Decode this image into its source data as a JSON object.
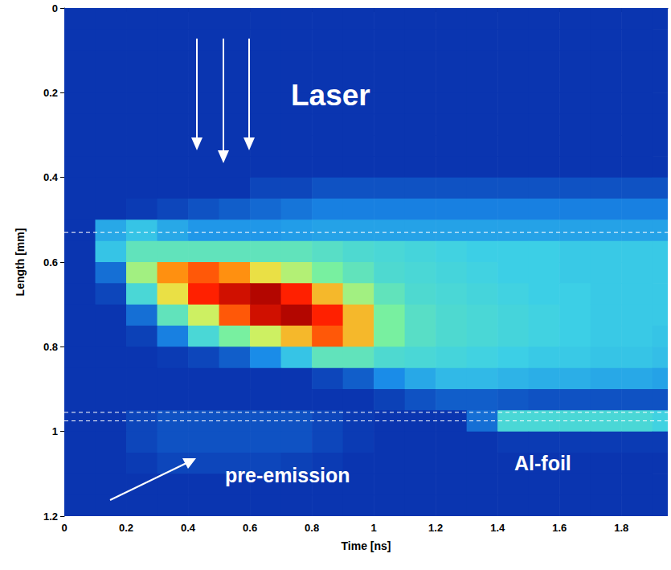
{
  "chart_data": {
    "type": "heatmap",
    "x_label": "Time [ns]",
    "y_label": "Length [mm]",
    "xlim": [
      0,
      1.95
    ],
    "ylim": [
      0,
      1.2
    ],
    "xticks": [
      0,
      0.2,
      0.4,
      0.6,
      0.8,
      1,
      1.2,
      1.4,
      1.6,
      1.8
    ],
    "yticks": [
      0,
      0.2,
      0.4,
      0.6,
      0.8,
      1,
      1.2
    ],
    "grid": false,
    "x_bins": [
      0,
      0.1,
      0.2,
      0.3,
      0.4,
      0.5,
      0.6,
      0.7,
      0.8,
      0.9,
      1,
      1.1,
      1.2,
      1.3,
      1.4,
      1.5,
      1.6,
      1.7,
      1.8,
      1.9,
      2
    ],
    "y_bins": [
      0,
      0.05,
      0.1,
      0.15,
      0.2,
      0.25,
      0.3,
      0.35,
      0.4,
      0.45,
      0.5,
      0.55,
      0.6,
      0.65,
      0.7,
      0.75,
      0.8,
      0.85,
      0.9,
      0.95,
      1,
      1.05,
      1.1,
      1.15,
      1.2
    ],
    "color_range": [
      0,
      10
    ],
    "cells": [
      [
        1.5,
        1.5,
        1.5,
        1.5,
        1.5,
        1.5,
        1.5,
        1.5,
        1.5,
        1.5,
        1.5,
        1.5,
        1.5,
        1.5,
        1.5,
        1.5,
        1.5,
        1.5,
        1.5,
        1.5
      ],
      [
        1.5,
        1.5,
        1.5,
        1.5,
        1.5,
        1.5,
        1.5,
        1.5,
        1.5,
        1.5,
        1.5,
        1.5,
        1.5,
        1.5,
        1.5,
        1.5,
        1.5,
        1.5,
        1.5,
        1.5
      ],
      [
        1.5,
        1.5,
        1.5,
        1.5,
        1.5,
        1.5,
        1.5,
        1.5,
        1.5,
        1.5,
        1.5,
        1.5,
        1.5,
        1.5,
        1.5,
        1.5,
        1.5,
        1.5,
        1.5,
        1.5
      ],
      [
        1.5,
        1.5,
        1.5,
        1.5,
        1.5,
        1.5,
        1.5,
        1.5,
        1.5,
        1.5,
        1.5,
        1.5,
        1.5,
        1.5,
        1.5,
        1.5,
        1.5,
        1.5,
        1.5,
        1.5
      ],
      [
        1.5,
        1.5,
        1.5,
        1.5,
        1.5,
        1.5,
        1.5,
        1.5,
        1.5,
        1.5,
        1.5,
        1.5,
        1.5,
        1.5,
        1.5,
        1.5,
        1.5,
        1.5,
        1.5,
        1.5
      ],
      [
        1.5,
        1.5,
        1.5,
        1.5,
        1.5,
        1.5,
        1.5,
        1.5,
        1.5,
        1.5,
        1.5,
        1.5,
        1.5,
        1.5,
        1.5,
        1.5,
        1.5,
        1.5,
        1.5,
        1.5
      ],
      [
        1.5,
        1.5,
        1.5,
        1.5,
        1.5,
        1.5,
        1.5,
        1.5,
        1.5,
        1.5,
        1.5,
        1.5,
        1.5,
        1.5,
        1.5,
        1.5,
        1.5,
        1.5,
        1.5,
        1.5
      ],
      [
        1.5,
        1.5,
        1.5,
        1.5,
        1.5,
        1.5,
        1.5,
        1.5,
        1.5,
        1.5,
        1.5,
        1.5,
        1.5,
        1.5,
        1.5,
        1.5,
        1.5,
        1.5,
        1.5,
        1.5
      ],
      [
        1.5,
        1.5,
        1.5,
        1.5,
        1.5,
        1.5,
        1.8,
        1.8,
        2,
        2,
        2,
        2,
        2,
        2,
        2,
        2,
        2,
        2,
        2,
        2
      ],
      [
        1.5,
        1.5,
        1.6,
        1.8,
        2,
        2.2,
        2.4,
        2.6,
        2.8,
        2.8,
        2.8,
        2.8,
        2.8,
        2.8,
        2.8,
        2.8,
        2.8,
        2.8,
        2.8,
        2.8
      ],
      [
        1.5,
        3.5,
        4,
        3.5,
        3.2,
        3.2,
        3.2,
        3.3,
        3.4,
        3.4,
        3.4,
        3.4,
        3.4,
        3.4,
        3.4,
        3.4,
        3.4,
        3.4,
        3.4,
        3.4
      ],
      [
        1.5,
        4,
        5,
        5,
        5,
        5,
        5,
        5,
        4.8,
        4.6,
        4.5,
        4.4,
        4.3,
        4.2,
        4.2,
        4.2,
        4.1,
        4.1,
        4.1,
        4.1
      ],
      [
        1.5,
        2.5,
        6,
        8,
        8.5,
        8,
        7,
        6.2,
        5.5,
        5,
        4.6,
        4.5,
        4.4,
        4.3,
        4.2,
        4.2,
        4.1,
        4.1,
        4.1,
        4.1
      ],
      [
        1.5,
        1.8,
        4.5,
        7,
        9,
        9.5,
        9.8,
        9,
        7.5,
        6,
        5,
        4.6,
        4.5,
        4.4,
        4.3,
        4.2,
        4.2,
        4.1,
        4.1,
        4.1
      ],
      [
        1.5,
        1.5,
        2.5,
        5,
        6.5,
        8.5,
        9.5,
        9.8,
        9,
        7.5,
        5.5,
        4.8,
        4.6,
        4.5,
        4.4,
        4.3,
        4.2,
        4.1,
        4.1,
        4.1
      ],
      [
        1.5,
        1.5,
        1.7,
        2.8,
        4.5,
        5.5,
        6.5,
        7.5,
        8.5,
        7.5,
        5.5,
        4.8,
        4.6,
        4.5,
        4.4,
        4.3,
        4.2,
        4.1,
        4.1,
        4
      ],
      [
        1.5,
        1.5,
        1.5,
        1.6,
        1.8,
        2.2,
        3,
        4,
        5,
        5,
        4.6,
        4.5,
        4.4,
        4.3,
        4.2,
        4.1,
        4.1,
        4,
        4,
        3.9
      ],
      [
        1.5,
        1.5,
        1.5,
        1.5,
        1.5,
        1.5,
        1.5,
        1.5,
        1.8,
        2.2,
        3,
        3.5,
        3.8,
        3.8,
        3.7,
        3.6,
        3.6,
        3.5,
        3.5,
        3.4
      ],
      [
        1.5,
        1.5,
        1.5,
        1.5,
        1.5,
        1.5,
        1.5,
        1.5,
        1.5,
        1.5,
        1.7,
        2,
        2.2,
        2.2,
        2.1,
        2,
        2,
        2,
        2,
        2
      ],
      [
        1.5,
        1.5,
        1.8,
        2,
        2,
        2,
        2,
        2,
        1.8,
        1.6,
        1.5,
        1.5,
        1.5,
        2.5,
        4.5,
        4.5,
        4.5,
        4.5,
        4.5,
        4.3
      ],
      [
        1.5,
        1.5,
        1.8,
        2,
        2,
        2,
        2,
        2,
        1.8,
        1.6,
        1.5,
        1.5,
        1.5,
        1.5,
        1.6,
        1.6,
        1.6,
        1.6,
        1.6,
        1.6
      ],
      [
        1.5,
        1.5,
        1.6,
        1.8,
        1.8,
        1.8,
        1.8,
        1.7,
        1.6,
        1.5,
        1.5,
        1.5,
        1.5,
        1.5,
        1.5,
        1.5,
        1.5,
        1.5,
        1.5,
        1.5
      ],
      [
        1.5,
        1.5,
        1.5,
        1.5,
        1.5,
        1.5,
        1.5,
        1.5,
        1.5,
        1.5,
        1.5,
        1.5,
        1.5,
        1.5,
        1.5,
        1.5,
        1.5,
        1.5,
        1.5,
        1.5
      ],
      [
        1.5,
        1.5,
        1.5,
        1.5,
        1.5,
        1.5,
        1.5,
        1.5,
        1.5,
        1.5,
        1.5,
        1.5,
        1.5,
        1.5,
        1.5,
        1.5,
        1.5,
        1.5,
        1.5,
        1.5
      ]
    ],
    "hlines": [
      0.53,
      0.955,
      0.975
    ],
    "annotations": [
      "Laser",
      "pre-emission",
      "Al-foil"
    ]
  }
}
